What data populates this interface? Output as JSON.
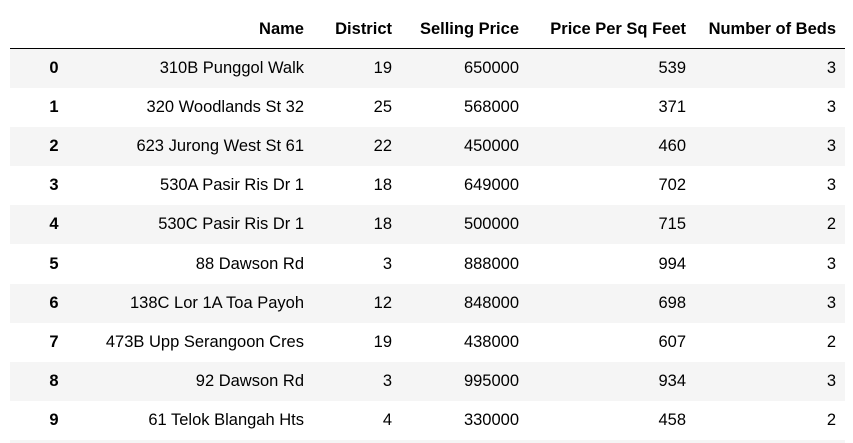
{
  "columns": [
    "",
    "Name",
    "District",
    "Selling Price",
    "Price Per Sq Feet",
    "Number of Beds"
  ],
  "rows": [
    {
      "index": "0",
      "name": "310B Punggol Walk",
      "district": "19",
      "selling_price": "650000",
      "price_per_sqft": "539",
      "beds": "3"
    },
    {
      "index": "1",
      "name": "320 Woodlands St 32",
      "district": "25",
      "selling_price": "568000",
      "price_per_sqft": "371",
      "beds": "3"
    },
    {
      "index": "2",
      "name": "623 Jurong West St 61",
      "district": "22",
      "selling_price": "450000",
      "price_per_sqft": "460",
      "beds": "3"
    },
    {
      "index": "3",
      "name": "530A Pasir Ris Dr 1",
      "district": "18",
      "selling_price": "649000",
      "price_per_sqft": "702",
      "beds": "3"
    },
    {
      "index": "4",
      "name": "530C Pasir Ris Dr 1",
      "district": "18",
      "selling_price": "500000",
      "price_per_sqft": "715",
      "beds": "2"
    },
    {
      "index": "5",
      "name": "88 Dawson Rd",
      "district": "3",
      "selling_price": "888000",
      "price_per_sqft": "994",
      "beds": "3"
    },
    {
      "index": "6",
      "name": "138C Lor 1A Toa Payoh",
      "district": "12",
      "selling_price": "848000",
      "price_per_sqft": "698",
      "beds": "3"
    },
    {
      "index": "7",
      "name": "473B Upp Serangoon Cres",
      "district": "19",
      "selling_price": "438000",
      "price_per_sqft": "607",
      "beds": "2"
    },
    {
      "index": "8",
      "name": "92 Dawson Rd",
      "district": "3",
      "selling_price": "995000",
      "price_per_sqft": "934",
      "beds": "3"
    },
    {
      "index": "9",
      "name": "61 Telok Blangah Hts",
      "district": "4",
      "selling_price": "330000",
      "price_per_sqft": "458",
      "beds": "2"
    }
  ],
  "colors": {
    "stripe": "#f5f5f5",
    "background": "#ffffff",
    "header_rule": "#000000"
  }
}
